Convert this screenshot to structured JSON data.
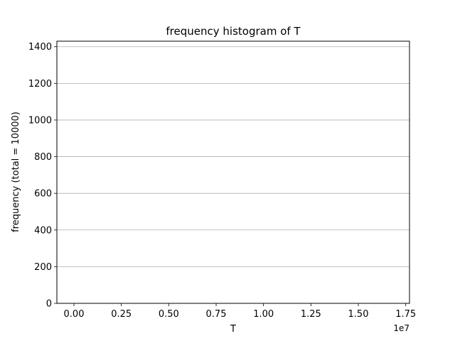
{
  "chart_data": {
    "type": "bar",
    "title": "frequency histogram of T",
    "xlabel": "T",
    "ylabel": "frequency (total = 10000)",
    "x_offset_label": "1e7",
    "xlim": [
      -0.09,
      1.77
    ],
    "ylim": [
      0,
      1430
    ],
    "xticks": [
      0.0,
      0.25,
      0.5,
      0.75,
      1.0,
      1.25,
      1.5,
      1.75
    ],
    "xtick_labels": [
      "0.00",
      "0.25",
      "0.50",
      "0.75",
      "1.00",
      "1.25",
      "1.50",
      "1.75"
    ],
    "yticks": [
      0,
      200,
      400,
      600,
      800,
      1000,
      1200,
      1400
    ],
    "ytick_labels": [
      "0",
      "200",
      "400",
      "600",
      "800",
      "1000",
      "1200",
      "1400"
    ],
    "grid": "y",
    "bar_color": "#1f77b4",
    "bars": []
  }
}
